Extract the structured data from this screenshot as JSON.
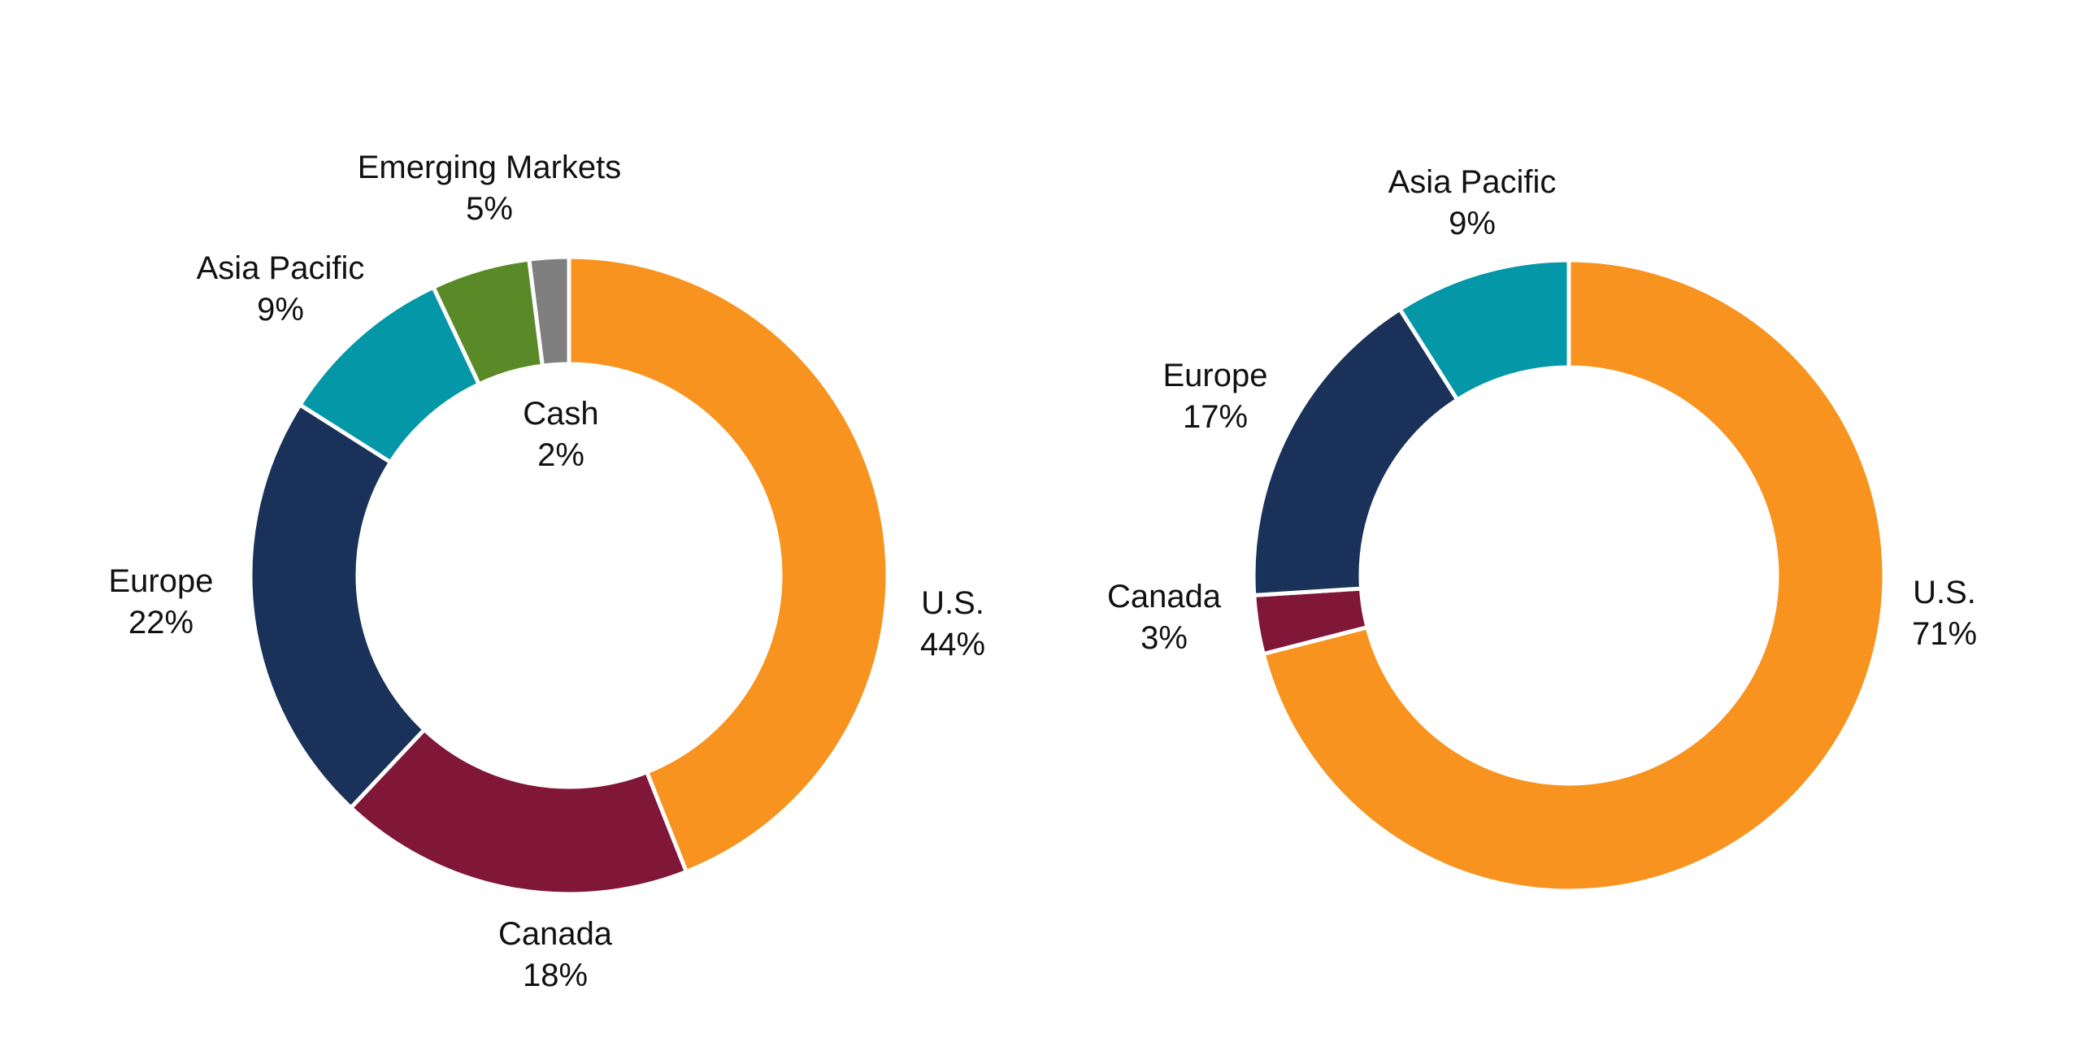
{
  "colors": {
    "us": "#F7931E",
    "canada": "#801638",
    "europe": "#1A3259",
    "asia_pacific": "#0497A8",
    "emerging_markets": "#5A8A27",
    "cash": "#7F7F7F"
  },
  "chart_data": [
    {
      "type": "pie",
      "donut": true,
      "slices": [
        {
          "name": "U.S.",
          "value": 44,
          "label": "44%",
          "color_key": "us"
        },
        {
          "name": "Canada",
          "value": 18,
          "label": "18%",
          "color_key": "canada"
        },
        {
          "name": "Europe",
          "value": 22,
          "label": "22%",
          "color_key": "europe"
        },
        {
          "name": "Asia Pacific",
          "value": 9,
          "label": "9%",
          "color_key": "asia_pacific"
        },
        {
          "name": "Emerging Markets",
          "value": 5,
          "label": "5%",
          "color_key": "emerging_markets"
        },
        {
          "name": "Cash",
          "value": 2,
          "label": "2%",
          "color_key": "cash"
        }
      ]
    },
    {
      "type": "pie",
      "donut": true,
      "slices": [
        {
          "name": "U.S.",
          "value": 71,
          "label": "71%",
          "color_key": "us"
        },
        {
          "name": "Canada",
          "value": 3,
          "label": "3%",
          "color_key": "canada"
        },
        {
          "name": "Europe",
          "value": 17,
          "label": "17%",
          "color_key": "europe"
        },
        {
          "name": "Asia Pacific",
          "value": 9,
          "label": "9%",
          "color_key": "asia_pacific"
        }
      ]
    }
  ]
}
